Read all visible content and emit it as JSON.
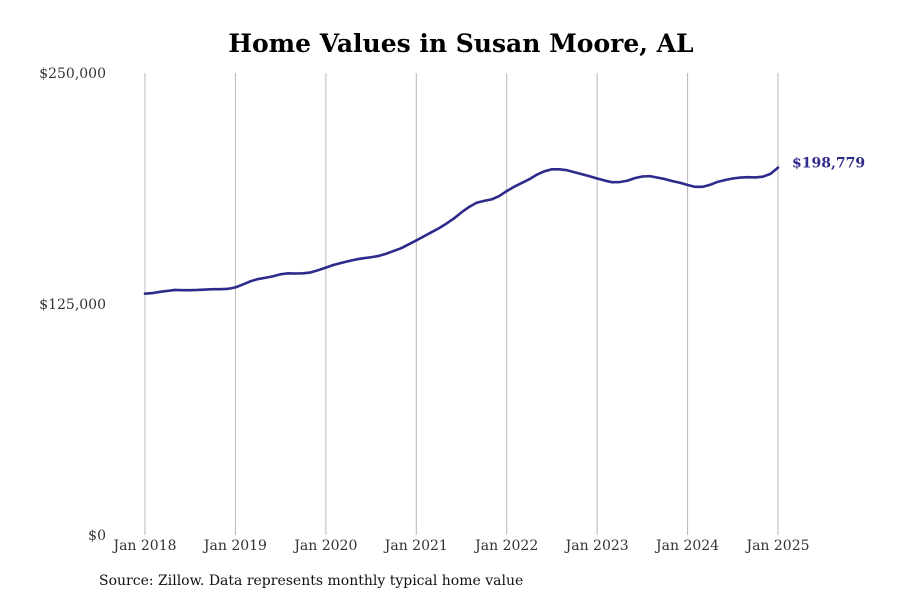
{
  "chart_data": {
    "type": "line",
    "title": "Home Values in Susan Moore, AL",
    "xlabel": "",
    "ylabel": "",
    "grid": "vertical",
    "x_ticks": [
      "Jan 2018",
      "Jan 2019",
      "Jan 2020",
      "Jan 2021",
      "Jan 2022",
      "Jan 2023",
      "Jan 2024",
      "Jan 2025"
    ],
    "y_ticks": [
      "$0",
      "$125,000",
      "$250,000"
    ],
    "ylim": [
      0,
      250000
    ],
    "xlim": [
      "2018-01",
      "2025-01"
    ],
    "series": [
      {
        "color": "#2e2b8a",
        "end_label": "$198,779",
        "points": [
          [
            "2018-01",
            130600
          ],
          [
            "2018-02",
            130900
          ],
          [
            "2018-03",
            131600
          ],
          [
            "2018-04",
            132100
          ],
          [
            "2018-05",
            132600
          ],
          [
            "2018-06",
            132500
          ],
          [
            "2018-07",
            132500
          ],
          [
            "2018-08",
            132600
          ],
          [
            "2018-09",
            132800
          ],
          [
            "2018-10",
            133000
          ],
          [
            "2018-11",
            133000
          ],
          [
            "2018-12",
            133200
          ],
          [
            "2019-01",
            134000
          ],
          [
            "2019-02",
            135600
          ],
          [
            "2019-03",
            137300
          ],
          [
            "2019-04",
            138500
          ],
          [
            "2019-05",
            139200
          ],
          [
            "2019-06",
            140000
          ],
          [
            "2019-07",
            141100
          ],
          [
            "2019-08",
            141600
          ],
          [
            "2019-09",
            141500
          ],
          [
            "2019-10",
            141600
          ],
          [
            "2019-11",
            142100
          ],
          [
            "2019-12",
            143300
          ],
          [
            "2020-01",
            144700
          ],
          [
            "2020-02",
            146100
          ],
          [
            "2020-03",
            147200
          ],
          [
            "2020-04",
            148200
          ],
          [
            "2020-05",
            149100
          ],
          [
            "2020-06",
            149800
          ],
          [
            "2020-07",
            150300
          ],
          [
            "2020-08",
            151000
          ],
          [
            "2020-09",
            152200
          ],
          [
            "2020-10",
            153700
          ],
          [
            "2020-11",
            155200
          ],
          [
            "2020-12",
            157300
          ],
          [
            "2021-01",
            159400
          ],
          [
            "2021-02",
            161600
          ],
          [
            "2021-03",
            163800
          ],
          [
            "2021-04",
            166000
          ],
          [
            "2021-05",
            168500
          ],
          [
            "2021-06",
            171300
          ],
          [
            "2021-07",
            174600
          ],
          [
            "2021-08",
            177500
          ],
          [
            "2021-09",
            179800
          ],
          [
            "2021-10",
            180800
          ],
          [
            "2021-11",
            181600
          ],
          [
            "2021-12",
            183400
          ],
          [
            "2022-01",
            186100
          ],
          [
            "2022-02",
            188500
          ],
          [
            "2022-03",
            190500
          ],
          [
            "2022-04",
            192500
          ],
          [
            "2022-05",
            195000
          ],
          [
            "2022-06",
            196800
          ],
          [
            "2022-07",
            197900
          ],
          [
            "2022-08",
            197900
          ],
          [
            "2022-09",
            197400
          ],
          [
            "2022-10",
            196300
          ],
          [
            "2022-11",
            195200
          ],
          [
            "2022-12",
            194100
          ],
          [
            "2023-01",
            192900
          ],
          [
            "2023-02",
            191800
          ],
          [
            "2023-03",
            190900
          ],
          [
            "2023-04",
            191000
          ],
          [
            "2023-05",
            191700
          ],
          [
            "2023-06",
            193100
          ],
          [
            "2023-07",
            194000
          ],
          [
            "2023-08",
            194200
          ],
          [
            "2023-09",
            193400
          ],
          [
            "2023-10",
            192600
          ],
          [
            "2023-11",
            191500
          ],
          [
            "2023-12",
            190600
          ],
          [
            "2024-01",
            189400
          ],
          [
            "2024-02",
            188400
          ],
          [
            "2024-03",
            188400
          ],
          [
            "2024-04",
            189500
          ],
          [
            "2024-05",
            191100
          ],
          [
            "2024-06",
            192100
          ],
          [
            "2024-07",
            192900
          ],
          [
            "2024-08",
            193400
          ],
          [
            "2024-09",
            193600
          ],
          [
            "2024-10",
            193500
          ],
          [
            "2024-11",
            193900
          ],
          [
            "2024-12",
            195400
          ],
          [
            "2025-01",
            198779
          ]
        ]
      }
    ]
  },
  "footer": {
    "source": "Source: Zillow. Data represents monthly typical home value"
  }
}
